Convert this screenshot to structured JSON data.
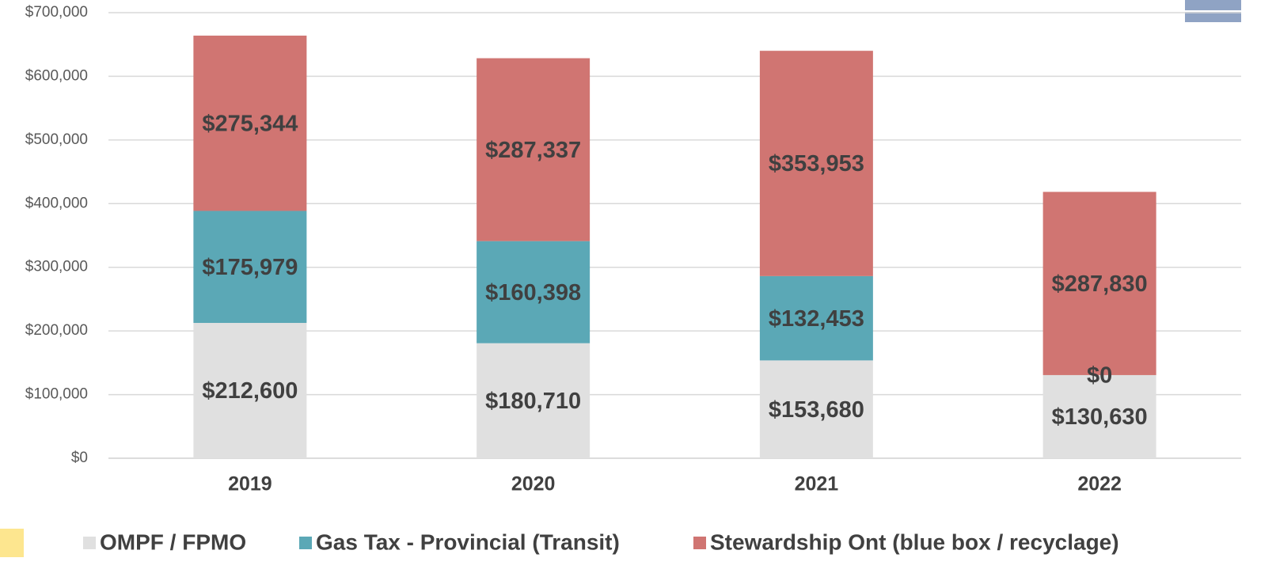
{
  "chart_data": {
    "type": "stacked_bar",
    "categories": [
      "2019",
      "2020",
      "2021",
      "2022"
    ],
    "series": [
      {
        "name": "OMPF / FPMO",
        "color": "#e0e0e0",
        "values": [
          212600,
          180710,
          153680,
          130630
        ],
        "value_labels": [
          "$212,600",
          "$180,710",
          "$153,680",
          "$130,630"
        ]
      },
      {
        "name": "Gas Tax - Provincial (Transit)",
        "color": "#5ba8b6",
        "values": [
          175979,
          160398,
          132453,
          0
        ],
        "value_labels": [
          "$175,979",
          "$160,398",
          "$132,453",
          "$0"
        ]
      },
      {
        "name": "Stewardship Ont (blue box / recyclage)",
        "color": "#d07572",
        "values": [
          275344,
          287337,
          353953,
          287830
        ],
        "value_labels": [
          "$275,344",
          "$287,337",
          "$353,953",
          "$287,830"
        ]
      }
    ],
    "ylim": [
      0,
      700000
    ],
    "yticks": [
      {
        "value": 0,
        "label": "$0"
      },
      {
        "value": 100000,
        "label": "$100,000"
      },
      {
        "value": 200000,
        "label": "$200,000"
      },
      {
        "value": 300000,
        "label": "$300,000"
      },
      {
        "value": 400000,
        "label": "$400,000"
      },
      {
        "value": 500000,
        "label": "$500,000"
      },
      {
        "value": 600000,
        "label": "$600,000"
      },
      {
        "value": 700000,
        "label": "$700,000"
      }
    ],
    "grid": true
  }
}
